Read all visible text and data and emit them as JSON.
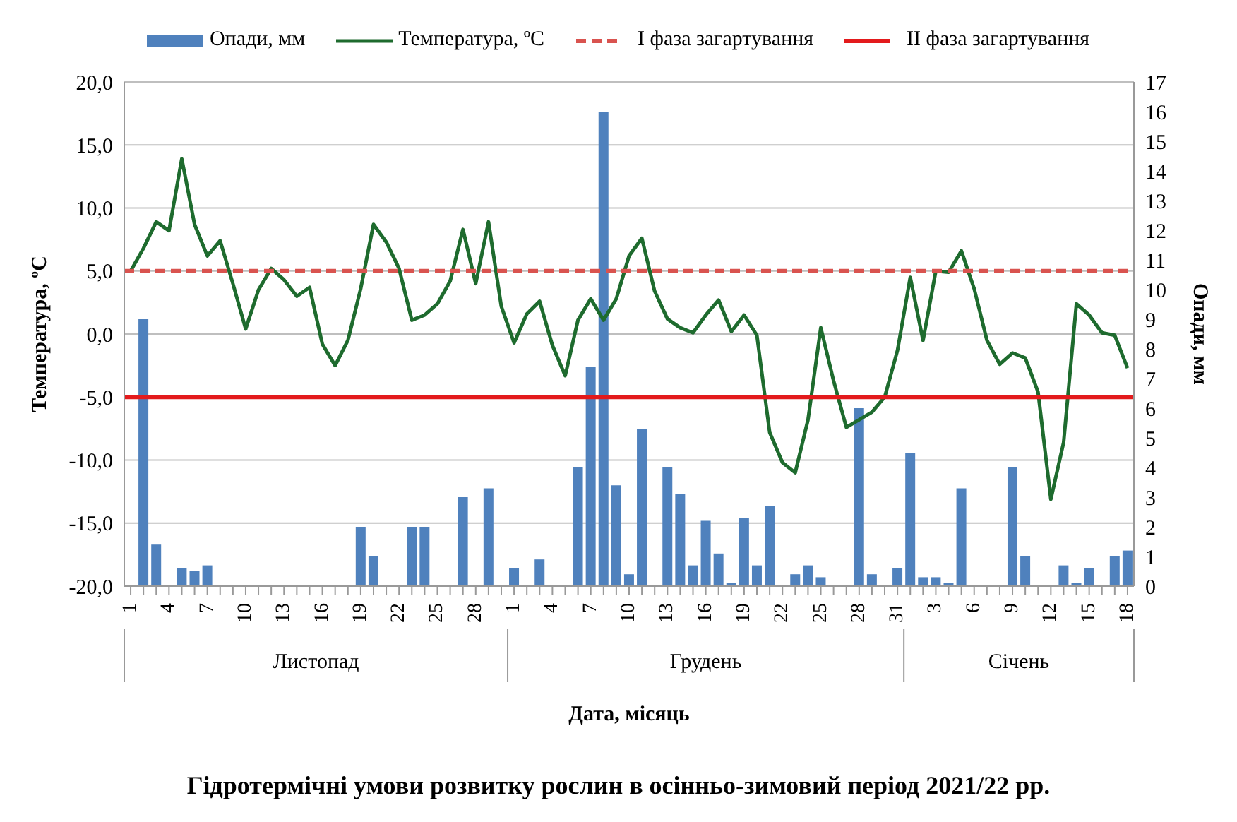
{
  "chart_data": {
    "type": "bar",
    "title": "Гідротермічні умови розвитку рослин в осінньо-зимовий період 2021/22 рр.",
    "xlabel": "Дата, місяць",
    "ylabel": "Температура, ºС",
    "y2label": "Опади, мм",
    "categories": [
      "1",
      null,
      null,
      "4",
      null,
      null,
      "7",
      null,
      null,
      "10",
      null,
      null,
      "13",
      null,
      null,
      "16",
      null,
      null,
      "19",
      null,
      null,
      "22",
      null,
      null,
      "25",
      null,
      null,
      "28",
      null,
      null,
      "1",
      null,
      null,
      "4",
      null,
      null,
      "7",
      null,
      null,
      "10",
      null,
      null,
      "13",
      null,
      null,
      "16",
      null,
      null,
      "19",
      null,
      null,
      "22",
      null,
      null,
      "25",
      null,
      null,
      "28",
      null,
      null,
      "31",
      null,
      null,
      "3",
      null,
      null,
      "6",
      null,
      null,
      "9",
      null,
      null,
      "12",
      null,
      null,
      "15",
      null,
      null,
      "18"
    ],
    "series": [
      {
        "name": "Опади, мм",
        "axis": "y2",
        "color": "#4f81bd",
        "values": [
          0,
          9.0,
          1.4,
          0,
          0.6,
          0.5,
          0.7,
          0,
          0,
          0,
          0,
          0,
          0,
          0,
          0,
          0,
          0,
          0,
          2.0,
          1.0,
          0,
          0,
          2.0,
          2.0,
          0,
          0,
          3.0,
          0,
          3.3,
          0,
          0.6,
          0,
          0.9,
          0,
          0,
          4.0,
          7.4,
          16.0,
          3.4,
          0.4,
          5.3,
          0,
          4.0,
          3.1,
          0.7,
          2.2,
          1.1,
          0.1,
          2.3,
          0.7,
          2.7,
          0,
          0.4,
          0.7,
          0.3,
          0,
          0,
          6.0,
          0.4,
          0,
          0.6,
          4.5,
          0.3,
          0.3,
          0.1,
          3.3,
          0,
          0,
          0,
          4.0,
          1.0,
          0,
          0,
          0.7,
          0.1,
          0.6,
          0,
          1.0,
          1.2
        ]
      },
      {
        "name": "Температура, ºС",
        "type": "line",
        "color": "#1e6b2e",
        "values": [
          5.0,
          6.8,
          8.9,
          8.2,
          13.9,
          8.7,
          6.2,
          7.4,
          4.0,
          0.4,
          3.5,
          5.2,
          4.3,
          3.0,
          3.7,
          -0.8,
          -2.5,
          -0.5,
          3.6,
          8.7,
          7.3,
          5.2,
          1.1,
          1.5,
          2.4,
          4.2,
          8.3,
          4.0,
          8.9,
          2.2,
          -0.7,
          1.6,
          2.6,
          -0.9,
          -3.3,
          1.1,
          2.8,
          1.1,
          2.8,
          6.2,
          7.6,
          3.4,
          1.2,
          0.5,
          0.1,
          1.5,
          2.7,
          0.2,
          1.5,
          -0.1,
          -7.8,
          -10.2,
          -11.0,
          -6.8,
          0.5,
          -3.7,
          -7.4,
          -6.8,
          -6.2,
          -5.0,
          -1.3,
          4.5,
          -0.5,
          5.0,
          4.9,
          6.6,
          3.6,
          -0.5,
          -2.4,
          -1.5,
          -1.9,
          -4.6,
          -13.1,
          -8.6,
          2.4,
          1.5,
          0.1,
          -0.1,
          -2.7
        ]
      }
    ],
    "ylim": [
      -20,
      20
    ],
    "yticks": [
      {
        "value": -20,
        "label": "-20,0"
      },
      {
        "value": -15,
        "label": "-15,0"
      },
      {
        "value": -10,
        "label": "-10,0"
      },
      {
        "value": -5,
        "label": "-5,0"
      },
      {
        "value": 0,
        "label": "0,0"
      },
      {
        "value": 5,
        "label": "5,0"
      },
      {
        "value": 10,
        "label": "10,0"
      },
      {
        "value": 15,
        "label": "15,0"
      },
      {
        "value": 20,
        "label": "20,0"
      }
    ],
    "y2lim": [
      0,
      17
    ],
    "y2ticks": [
      0,
      1,
      2,
      3,
      4,
      5,
      6,
      7,
      8,
      9,
      10,
      11,
      12,
      13,
      14,
      15,
      16,
      17
    ],
    "ref_lines": [
      {
        "axis": "y",
        "value": 5,
        "label": "I фаза загартування",
        "color": "#d9534f",
        "line_style": "dashed"
      },
      {
        "axis": "y",
        "value": -5,
        "label": "II фаза загартування",
        "color": "#e31a1c",
        "line_style": "solid"
      }
    ],
    "annotations": [
      "Листопад",
      "Грудень",
      "Січень"
    ],
    "grid": "y",
    "legend": "top",
    "marker": "none",
    "line_style": "solid"
  }
}
